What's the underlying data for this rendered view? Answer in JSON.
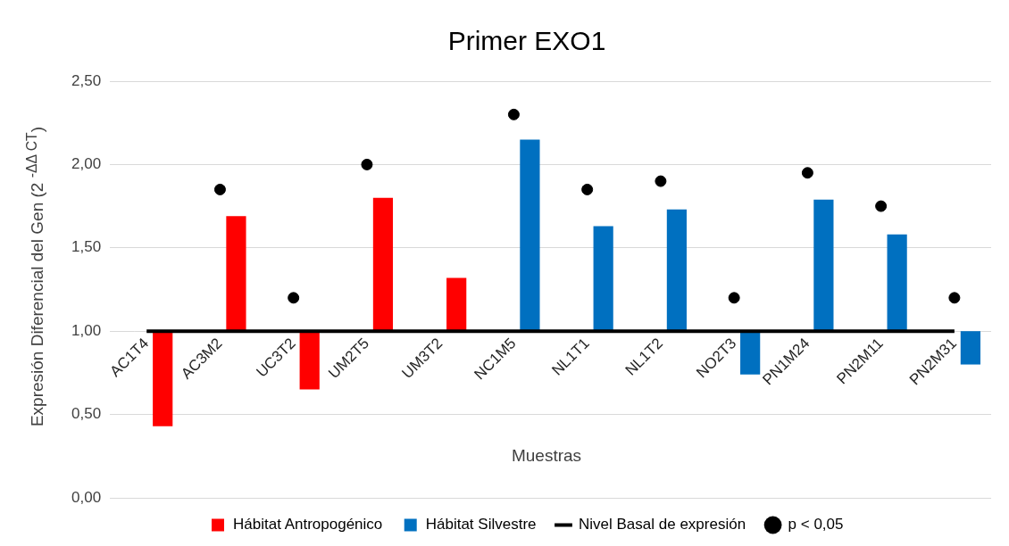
{
  "chart_data": {
    "type": "bar",
    "title": "Primer EXO1",
    "xlabel": "Muestras",
    "ylabel": "Expresión Diferencial del Gen (2 $^{-ΔΔ CT}$)",
    "categories": [
      "AC1T4",
      "AC3M2",
      "UC3T2",
      "UM2T5",
      "UM3T2",
      "NC1M5",
      "NL1T1",
      "NL1T2",
      "NO2T3",
      "PN1M24",
      "PN2M11",
      "PN2M31"
    ],
    "series": [
      {
        "name": "Hábitat Antropogénico",
        "color": "#ff0000",
        "base": [
          1,
          1,
          1,
          1,
          1,
          null,
          null,
          null,
          null,
          null,
          null,
          null
        ],
        "values": [
          -0.57,
          0.69,
          -0.35,
          0.8,
          0.32,
          null,
          null,
          null,
          null,
          null,
          null,
          null
        ]
      },
      {
        "name": "Hábitat Silvestre",
        "color": "#0070c0",
        "base": [
          null,
          null,
          null,
          null,
          null,
          1,
          1,
          1,
          1,
          1,
          1,
          1
        ],
        "values": [
          null,
          null,
          null,
          null,
          null,
          1.15,
          0.63,
          0.73,
          -0.26,
          0.79,
          0.58,
          -0.2
        ]
      },
      {
        "name": "Nivel Basal de expresión",
        "type": "line",
        "color": "#000000",
        "marker": "none",
        "values": [
          1,
          1,
          1,
          1,
          1,
          1,
          1,
          1,
          1,
          1,
          1,
          1
        ]
      },
      {
        "name": "p < 0,05",
        "type": "scatter",
        "color": "#000000",
        "marker": "circle",
        "x": [
          "AC3M2",
          "UC3T2",
          "UM2T5",
          "NC1M5",
          "NL1T1",
          "NL1T2",
          "NO2T3",
          "PN1M24",
          "PN2M11",
          "PN2M31"
        ],
        "values": [
          1.85,
          1.2,
          2.0,
          2.3,
          1.85,
          1.9,
          1.2,
          1.95,
          1.75,
          1.2
        ]
      }
    ],
    "ylim": [
      0,
      2.5
    ],
    "yticks": [
      {
        "value": 0,
        "label": "0,00"
      },
      {
        "value": 0.5,
        "label": "0,50"
      },
      {
        "value": 1,
        "label": "1,00"
      },
      {
        "value": 1.5,
        "label": "1,50"
      },
      {
        "value": 2,
        "label": "2,00"
      },
      {
        "value": 2.5,
        "label": "2,50"
      }
    ],
    "grid": "y",
    "legend": "bottom"
  }
}
